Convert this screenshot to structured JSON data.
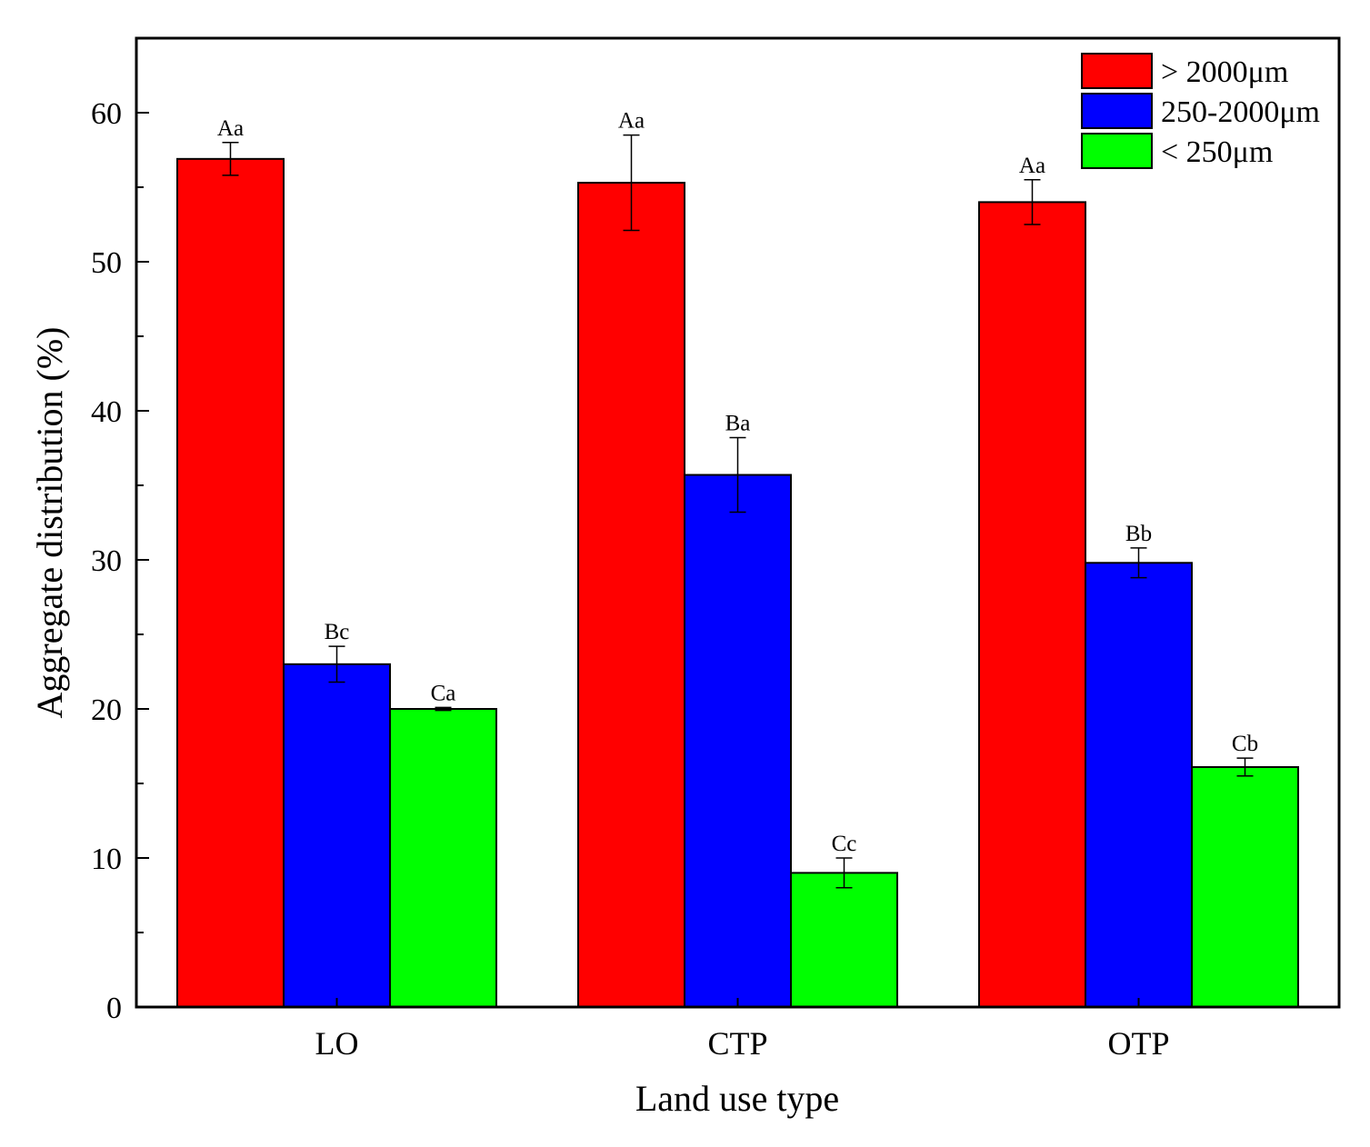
{
  "chart_data": {
    "type": "bar",
    "title": "",
    "xlabel": "Land use type",
    "ylabel": "Aggregate distribution (%)",
    "ylim": [
      0,
      65
    ],
    "yticks": [
      0,
      10,
      20,
      30,
      40,
      50,
      60
    ],
    "categories": [
      "LO",
      "CTP",
      "OTP"
    ],
    "legend_position": "top-right",
    "series": [
      {
        "name": "> 2000μm",
        "color": "#ff0000",
        "values": [
          56.9,
          55.3,
          54.0
        ],
        "errors": [
          1.1,
          3.2,
          1.5
        ],
        "labels": [
          "Aa",
          "Aa",
          "Aa"
        ]
      },
      {
        "name": "250-2000μm",
        "color": "#0000ff",
        "values": [
          23.0,
          35.7,
          29.8
        ],
        "errors": [
          1.2,
          2.5,
          1.0
        ],
        "labels": [
          "Bc",
          "Ba",
          "Bb"
        ]
      },
      {
        "name": "< 250μm",
        "color": "#00ff00",
        "values": [
          20.0,
          9.0,
          16.1
        ],
        "errors": [
          0.1,
          1.0,
          0.6
        ],
        "labels": [
          "Ca",
          "Cc",
          "Cb"
        ]
      }
    ]
  }
}
